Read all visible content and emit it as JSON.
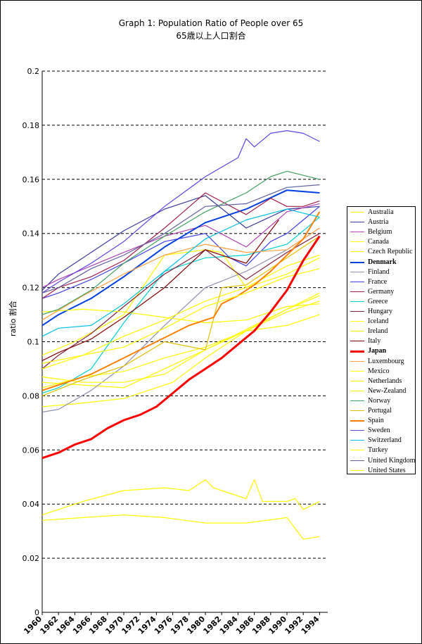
{
  "chart_data": {
    "type": "line",
    "title": "Graph 1: Population Ratio of People over 65",
    "subtitle": "65歳以上人口割合",
    "ylabel": "ratio 割合",
    "xlabel": "",
    "xlim": [
      1960,
      1995
    ],
    "ylim": [
      0,
      0.2
    ],
    "yticks": [
      "0",
      "0.02",
      "0.04",
      "0.06",
      "0.08",
      "0.1",
      "0.12",
      "0.14",
      "0.16",
      "0.18",
      "0.2"
    ],
    "xticks": [
      "1960",
      "1962",
      "1964",
      "1966",
      "1968",
      "1970",
      "1972",
      "1974",
      "1976",
      "1978",
      "1980",
      "1982",
      "1984",
      "1986",
      "1988",
      "1990",
      "1992",
      "1994"
    ],
    "grid": "horizontal dashed",
    "legend_position": "right",
    "series": [
      {
        "name": "Australia",
        "color": "#ffff00",
        "x": [
          1960,
          1970,
          1980,
          1990,
          1994
        ],
        "y": [
          0.085,
          0.083,
          0.097,
          0.112,
          0.117
        ]
      },
      {
        "name": "Austria",
        "color": "#3a3a9a",
        "x": [
          1960,
          1962,
          1966,
          1970,
          1975,
          1980,
          1985,
          1990,
          1994
        ],
        "y": [
          0.119,
          0.125,
          0.133,
          0.141,
          0.149,
          0.154,
          0.142,
          0.149,
          0.15
        ]
      },
      {
        "name": "Belgium",
        "color": "#b040b0",
        "x": [
          1960,
          1962,
          1966,
          1970,
          1975,
          1980,
          1985,
          1990,
          1994
        ],
        "y": [
          0.12,
          0.123,
          0.128,
          0.133,
          0.139,
          0.143,
          0.135,
          0.148,
          0.151
        ]
      },
      {
        "name": "Canada",
        "color": "#ffff00",
        "x": [
          1960,
          1964,
          1970,
          1976,
          1980,
          1985,
          1990,
          1994
        ],
        "y": [
          0.076,
          0.077,
          0.079,
          0.085,
          0.094,
          0.104,
          0.112,
          0.118
        ]
      },
      {
        "name": "Czech Republic",
        "color": "#ffff00",
        "x": [
          1960,
          1964,
          1970,
          1975,
          1980,
          1982,
          1985,
          1990,
          1994
        ],
        "y": [
          0.095,
          0.1,
          0.11,
          0.132,
          0.134,
          0.133,
          0.12,
          0.125,
          0.131
        ]
      },
      {
        "name": "Denmark",
        "color": "#0040e0",
        "x": [
          1960,
          1962,
          1966,
          1970,
          1975,
          1980,
          1985,
          1990,
          1994
        ],
        "y": [
          0.106,
          0.11,
          0.116,
          0.124,
          0.135,
          0.144,
          0.149,
          0.156,
          0.155
        ]
      },
      {
        "name": "Finland",
        "color": "#9090b0",
        "x": [
          1960,
          1962,
          1966,
          1970,
          1975,
          1980,
          1985,
          1990,
          1994
        ],
        "y": [
          0.074,
          0.075,
          0.082,
          0.091,
          0.106,
          0.12,
          0.126,
          0.134,
          0.142
        ]
      },
      {
        "name": "France",
        "color": "#4040e0",
        "x": [
          1960,
          1962,
          1966,
          1970,
          1975,
          1980,
          1983,
          1985,
          1986,
          1988,
          1990,
          1992,
          1994
        ],
        "y": [
          0.116,
          0.118,
          0.123,
          0.129,
          0.137,
          0.14,
          0.131,
          0.128,
          0.131,
          0.137,
          0.14,
          0.145,
          0.15
        ]
      },
      {
        "name": "Germany",
        "color": "#a02050",
        "x": [
          1960,
          1962,
          1966,
          1970,
          1975,
          1980,
          1985,
          1988,
          1990,
          1992,
          1994
        ],
        "y": [
          0.116,
          0.12,
          0.124,
          0.13,
          0.142,
          0.155,
          0.147,
          0.153,
          0.15,
          0.15,
          0.152
        ]
      },
      {
        "name": "Greece",
        "color": "#00d0d0",
        "x": [
          1960,
          1962,
          1966,
          1970,
          1975,
          1980,
          1985,
          1990,
          1994
        ],
        "y": [
          0.081,
          0.083,
          0.09,
          0.107,
          0.126,
          0.131,
          0.132,
          0.136,
          0.146
        ]
      },
      {
        "name": "Hungary",
        "color": "#802040",
        "x": [
          1960,
          1962,
          1966,
          1970,
          1975,
          1980,
          1985,
          1990,
          1994
        ],
        "y": [
          0.09,
          0.095,
          0.103,
          0.113,
          0.125,
          0.134,
          0.123,
          0.133,
          0.14
        ]
      },
      {
        "name": "Iceland",
        "color": "#ffff00",
        "x": [
          1960,
          1965,
          1970,
          1975,
          1980,
          1985,
          1990,
          1994
        ],
        "y": [
          0.083,
          0.087,
          0.089,
          0.094,
          0.098,
          0.104,
          0.106,
          0.11
        ]
      },
      {
        "name": "Ireland",
        "color": "#ffff00",
        "x": [
          1960,
          1965,
          1970,
          1975,
          1980,
          1985,
          1990,
          1994
        ],
        "y": [
          0.111,
          0.112,
          0.111,
          0.109,
          0.107,
          0.108,
          0.113,
          0.114
        ]
      },
      {
        "name": "Italy",
        "color": "#800000",
        "x": [
          1960,
          1962,
          1966,
          1970,
          1975,
          1980,
          1985,
          1989
        ],
        "y": [
          0.093,
          0.096,
          0.101,
          0.109,
          0.12,
          0.134,
          0.129,
          0.145
        ]
      },
      {
        "name": "Japan",
        "color": "#ff0000",
        "x": [
          1960,
          1962,
          1964,
          1966,
          1968,
          1970,
          1972,
          1974,
          1976,
          1978,
          1980,
          1982,
          1984,
          1986,
          1988,
          1990,
          1992,
          1994
        ],
        "y": [
          0.057,
          0.059,
          0.062,
          0.064,
          0.068,
          0.071,
          0.073,
          0.076,
          0.081,
          0.086,
          0.09,
          0.094,
          0.099,
          0.104,
          0.111,
          0.119,
          0.13,
          0.139
        ]
      },
      {
        "name": "Luxembourg",
        "color": "#ffa040",
        "x": [
          1960,
          1965,
          1970,
          1975,
          1980,
          1985,
          1990,
          1994
        ],
        "y": [
          0.108,
          0.117,
          0.125,
          0.132,
          0.136,
          0.133,
          0.134,
          0.142
        ]
      },
      {
        "name": "Mexico",
        "color": "#ffff00",
        "x": [
          1960,
          1965,
          1970,
          1975,
          1980,
          1985,
          1990,
          1992,
          1994
        ],
        "y": [
          0.034,
          0.035,
          0.036,
          0.035,
          0.033,
          0.033,
          0.035,
          0.027,
          0.028
        ]
      },
      {
        "name": "Netherlands",
        "color": "#ffff00",
        "x": [
          1960,
          1965,
          1970,
          1975,
          1980,
          1985,
          1990,
          1994
        ],
        "y": [
          0.09,
          0.095,
          0.102,
          0.108,
          0.115,
          0.12,
          0.128,
          0.132
        ]
      },
      {
        "name": "New-Zealand",
        "color": "#ffff00",
        "x": [
          1960,
          1965,
          1970,
          1975,
          1980,
          1985,
          1990,
          1994
        ],
        "y": [
          0.087,
          0.085,
          0.085,
          0.088,
          0.097,
          0.104,
          0.111,
          0.115
        ]
      },
      {
        "name": "Norway",
        "color": "#40a060",
        "x": [
          1960,
          1962,
          1966,
          1970,
          1975,
          1980,
          1985,
          1988,
          1990,
          1994
        ],
        "y": [
          0.11,
          0.112,
          0.119,
          0.129,
          0.139,
          0.148,
          0.155,
          0.161,
          0.163,
          0.16
        ]
      },
      {
        "name": "Portugal",
        "color": "#e0c000",
        "x": [
          1960,
          1965,
          1970,
          1975,
          1980,
          1982,
          1985,
          1990,
          1994
        ],
        "y": [
          0.08,
          0.086,
          0.091,
          0.1,
          0.097,
          0.12,
          0.121,
          0.131,
          0.139
        ]
      },
      {
        "name": "Spain",
        "color": "#ff8000",
        "x": [
          1960,
          1962,
          1964,
          1966,
          1968,
          1970,
          1972,
          1974,
          1976,
          1978,
          1980,
          1981,
          1982,
          1984,
          1986,
          1988,
          1990,
          1992,
          1994
        ],
        "y": [
          0.082,
          0.084,
          0.086,
          0.088,
          0.091,
          0.094,
          0.097,
          0.1,
          0.103,
          0.106,
          0.108,
          0.109,
          0.114,
          0.117,
          0.121,
          0.126,
          0.132,
          0.138,
          0.148
        ]
      },
      {
        "name": "Sweden",
        "color": "#6040e0",
        "x": [
          1960,
          1962,
          1966,
          1970,
          1975,
          1980,
          1984,
          1985,
          1986,
          1988,
          1990,
          1992,
          1994
        ],
        "y": [
          0.118,
          0.122,
          0.129,
          0.137,
          0.15,
          0.161,
          0.168,
          0.175,
          0.172,
          0.177,
          0.178,
          0.177,
          0.174
        ]
      },
      {
        "name": "Switzerland",
        "color": "#00c0e0",
        "x": [
          1960,
          1962,
          1966,
          1970,
          1975,
          1980,
          1985,
          1990,
          1994
        ],
        "y": [
          0.102,
          0.105,
          0.106,
          0.114,
          0.126,
          0.138,
          0.145,
          0.149,
          0.146
        ]
      },
      {
        "name": "Turkey",
        "color": "#ffff00",
        "x": [
          1960,
          1965,
          1970,
          1975,
          1978,
          1980,
          1981,
          1982,
          1985,
          1986,
          1987,
          1990,
          1991,
          1992,
          1994
        ],
        "y": [
          0.036,
          0.041,
          0.045,
          0.046,
          0.045,
          0.049,
          0.046,
          0.045,
          0.042,
          0.049,
          0.041,
          0.041,
          0.042,
          0.038,
          0.041
        ]
      },
      {
        "name": "United Kingdom",
        "color": "#6060a0",
        "x": [
          1960,
          1962,
          1966,
          1970,
          1975,
          1980,
          1985,
          1990,
          1994
        ],
        "y": [
          0.118,
          0.12,
          0.127,
          0.132,
          0.14,
          0.15,
          0.151,
          0.157,
          0.158
        ]
      },
      {
        "name": "United States",
        "color": "#ffff00",
        "x": [
          1960,
          1965,
          1970,
          1975,
          1980,
          1985,
          1990,
          1994
        ],
        "y": [
          0.092,
          0.095,
          0.098,
          0.105,
          0.113,
          0.118,
          0.124,
          0.127
        ]
      }
    ]
  }
}
